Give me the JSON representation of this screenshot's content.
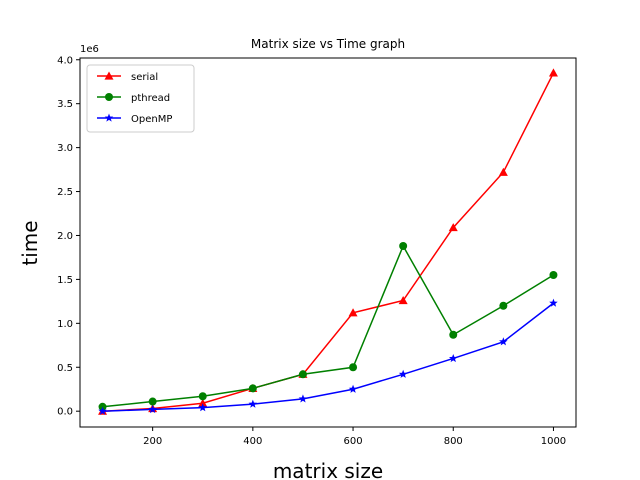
{
  "chart_data": {
    "type": "line",
    "title": "Matrix size vs Time graph",
    "xlabel": "matrix size",
    "ylabel": "time",
    "y_offset_label": "1e6",
    "x": [
      100,
      200,
      300,
      400,
      500,
      600,
      700,
      800,
      900,
      1000
    ],
    "xlim": [
      55,
      1045
    ],
    "ylim": [
      -0.18,
      4.02
    ],
    "xticks": [
      200,
      400,
      600,
      800,
      1000
    ],
    "xtick_labels": [
      "200",
      "400",
      "600",
      "800",
      "1000"
    ],
    "yticks": [
      0.0,
      0.5,
      1.0,
      1.5,
      2.0,
      2.5,
      3.0,
      3.5,
      4.0
    ],
    "ytick_labels": [
      "0.0",
      "0.5",
      "1.0",
      "1.5",
      "2.0",
      "2.5",
      "3.0",
      "3.5",
      "4.0"
    ],
    "grid": false,
    "legend_position": "top-left",
    "series": [
      {
        "name": "serial",
        "color": "#ff0000",
        "marker": "triangle",
        "values": [
          0.0,
          0.03,
          0.09,
          0.26,
          0.42,
          1.12,
          1.26,
          2.09,
          2.72,
          3.85
        ]
      },
      {
        "name": "pthread",
        "color": "#008000",
        "marker": "circle",
        "values": [
          0.05,
          0.11,
          0.17,
          0.26,
          0.42,
          0.5,
          1.88,
          0.87,
          1.2,
          1.55
        ]
      },
      {
        "name": "OpenMP",
        "color": "#0000ff",
        "marker": "star",
        "values": [
          0.0,
          0.02,
          0.04,
          0.08,
          0.14,
          0.25,
          0.42,
          0.6,
          0.79,
          1.23
        ]
      }
    ]
  }
}
